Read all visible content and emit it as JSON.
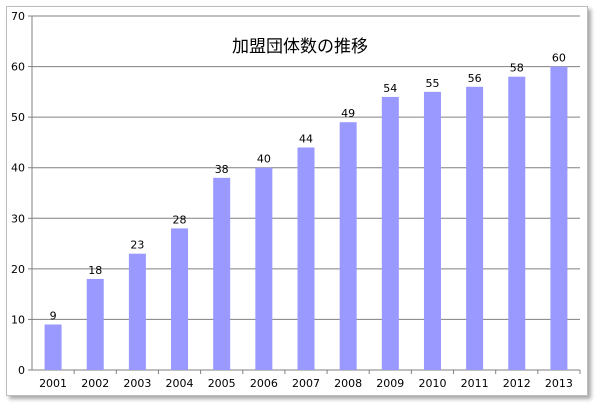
{
  "chart_data": {
    "type": "bar",
    "title": "加盟団体数の推移",
    "xlabel": "",
    "ylabel": "",
    "categories": [
      "2001",
      "2002",
      "2003",
      "2004",
      "2005",
      "2006",
      "2007",
      "2008",
      "2009",
      "2010",
      "2011",
      "2012",
      "2013"
    ],
    "values": [
      9,
      18,
      23,
      28,
      38,
      40,
      44,
      49,
      54,
      55,
      56,
      58,
      60
    ],
    "ylim": [
      0,
      70
    ],
    "yticks": [
      0,
      10,
      20,
      30,
      40,
      50,
      60,
      70
    ],
    "grid": true,
    "legend": "none",
    "bar_color": "#9999ff",
    "grid_color": "#808080"
  }
}
